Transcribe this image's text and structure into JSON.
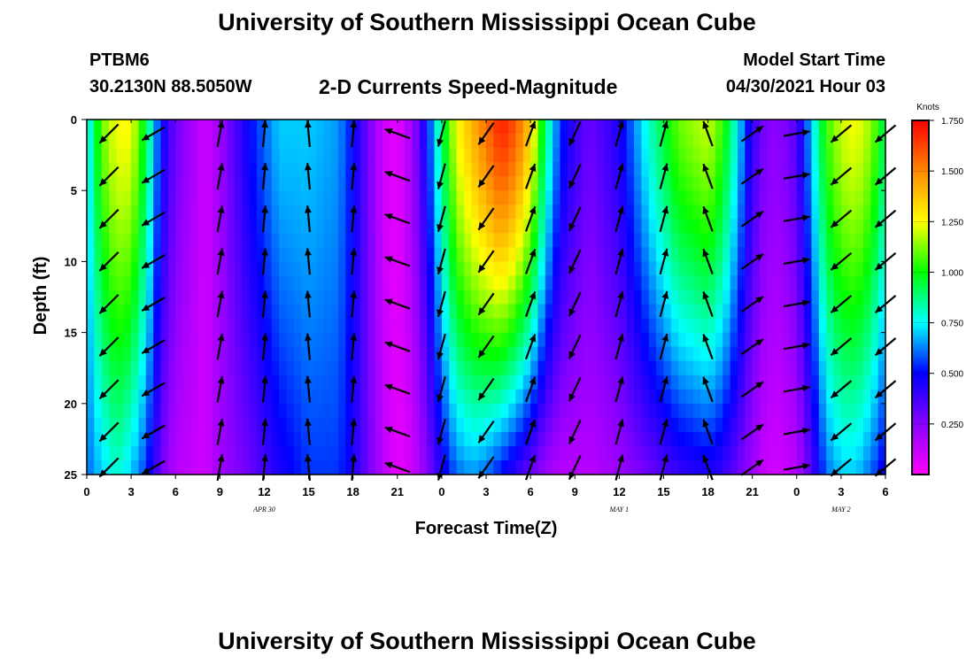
{
  "header": {
    "title": "University of Southern Mississippi Ocean Cube",
    "station": "PTBM6",
    "coords": "30.2130N  88.5050W",
    "main_title": "2-D Currents Speed-Magnitude",
    "model_start_label": "Model Start Time",
    "model_start_value": "04/30/2021 Hour 03"
  },
  "footer": {
    "title": "University of Southern Mississippi Ocean Cube"
  },
  "chart_data": {
    "type": "heatmap",
    "title": "2-D Currents Speed-Magnitude",
    "xlabel": "Forecast Time(Z)",
    "ylabel": "Depth (ft)",
    "x_hours_range": [
      0,
      54
    ],
    "x_tick_labels": [
      "0",
      "3",
      "6",
      "9",
      "12",
      "15",
      "18",
      "21",
      "0",
      "3",
      "6",
      "9",
      "12",
      "15",
      "18",
      "21",
      "0",
      "3",
      "6"
    ],
    "date_labels": [
      {
        "label": "APR  30",
        "at_hour": 12
      },
      {
        "label": "MAY  1",
        "at_hour": 36
      },
      {
        "label": "MAY  2",
        "at_hour": 51
      }
    ],
    "y_ticks": [
      0,
      5,
      10,
      15,
      20,
      25
    ],
    "ylim": [
      0,
      25
    ],
    "y_inverted": true,
    "colorbar": {
      "unit": "Knots",
      "range": [
        0.0,
        1.75
      ],
      "tick_labels": [
        "1.750",
        "1.500",
        "1.250",
        "1.000",
        "0.750",
        "0.500",
        "0.250"
      ],
      "tick_values": [
        1.75,
        1.5,
        1.25,
        1.0,
        0.75,
        0.5,
        0.25
      ],
      "colors": [
        "#ff00ff",
        "#8800ff",
        "#0000ff",
        "#00ffff",
        "#00ff00",
        "#ffff00",
        "#ff8800",
        "#ff0000"
      ]
    },
    "speed_profile_hours": [
      0,
      1,
      2,
      3,
      4,
      5,
      6,
      8,
      9,
      11,
      13,
      15,
      17,
      18,
      19,
      20,
      21,
      22,
      23,
      24,
      25,
      26,
      27,
      28,
      29,
      30,
      31,
      32,
      33,
      34,
      36,
      38,
      40,
      42,
      43,
      44,
      45,
      46,
      47,
      48,
      49,
      50,
      51,
      52,
      53,
      54
    ],
    "speed_surface_knots": [
      0.7,
      1.1,
      1.25,
      1.25,
      0.95,
      0.5,
      0.3,
      0.1,
      0.2,
      0.5,
      0.7,
      0.7,
      0.65,
      0.5,
      0.3,
      0.1,
      0.05,
      0.2,
      0.5,
      0.9,
      1.25,
      1.4,
      1.55,
      1.7,
      1.6,
      1.35,
      0.9,
      0.55,
      0.4,
      0.3,
      0.45,
      0.8,
      1.1,
      1.2,
      1.05,
      0.75,
      0.4,
      0.25,
      0.25,
      0.35,
      0.7,
      1.05,
      1.2,
      1.25,
      1.15,
      0.9
    ],
    "speed_bottom_knots": [
      0.6,
      0.7,
      0.8,
      0.7,
      0.55,
      0.3,
      0.15,
      0.1,
      0.2,
      0.3,
      0.45,
      0.55,
      0.55,
      0.45,
      0.3,
      0.15,
      0.05,
      0.1,
      0.25,
      0.45,
      0.6,
      0.65,
      0.6,
      0.5,
      0.4,
      0.3,
      0.2,
      0.15,
      0.15,
      0.15,
      0.2,
      0.3,
      0.4,
      0.45,
      0.4,
      0.3,
      0.2,
      0.1,
      0.1,
      0.15,
      0.35,
      0.6,
      0.7,
      0.7,
      0.6,
      0.45
    ],
    "vector_hours": [
      1.5,
      4.5,
      9,
      12,
      15,
      18,
      21,
      24,
      27,
      30,
      33,
      36,
      39,
      42,
      45,
      48,
      51,
      54
    ],
    "vector_depths_ft": [
      1,
      4,
      7,
      10,
      13,
      16,
      19,
      22,
      24.5
    ],
    "vector_direction_deg": [
      225,
      240,
      10,
      5,
      355,
      5,
      290,
      195,
      215,
      20,
      205,
      15,
      15,
      340,
      55,
      80,
      230,
      230
    ]
  }
}
